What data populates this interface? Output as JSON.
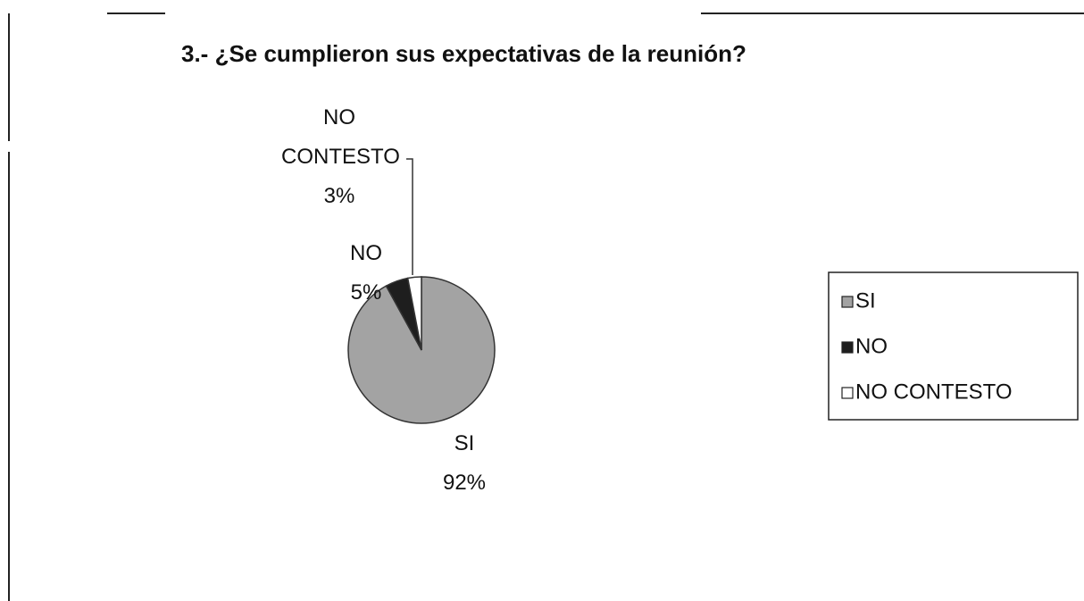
{
  "chart_data": {
    "type": "pie",
    "title": "3.- ¿Se cumplieron sus expectativas de la reunión?",
    "categories": [
      "SI",
      "NO",
      "NO CONTESTO"
    ],
    "values": [
      92,
      5,
      3
    ],
    "value_labels": [
      "92%",
      "5%",
      "3%"
    ],
    "colors": [
      "#a3a3a3",
      "#1e1e1e",
      "#ffffff"
    ],
    "legend": "right"
  }
}
